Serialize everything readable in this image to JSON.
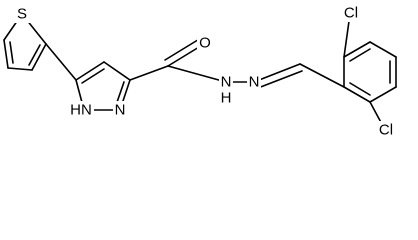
{
  "atoms": {
    "s": "S",
    "nh_ring": "HN",
    "n_ring": "N",
    "o": "O",
    "n_amide": "N",
    "h_amide": "H",
    "n_imine": "N",
    "cl_top": "Cl",
    "cl_bottom": "Cl"
  }
}
